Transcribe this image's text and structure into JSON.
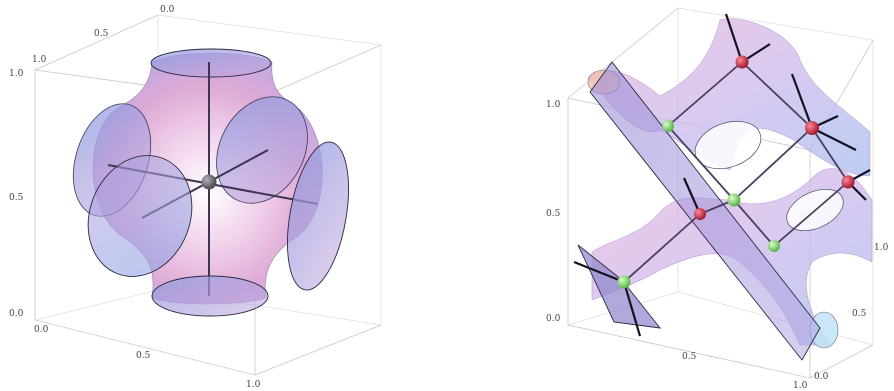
{
  "colors": {
    "surface_pink": "#e9a9d6",
    "surface_blue": "#9fb0ea",
    "disc_blue": "#7f8fd6",
    "red_node": "#c0283e",
    "green_node": "#7fd46a",
    "gray_node": "#6e6e72",
    "frame": "#c8c8c8"
  },
  "left_plot": {
    "ticks_top": [
      "0.0",
      "0.5",
      "1.0"
    ],
    "ticks_left": [
      "1.0",
      "0.5",
      "0.0"
    ],
    "ticks_bottom": [
      "0.0",
      "0.5",
      "1.0"
    ]
  },
  "right_plot": {
    "ticks_left": [
      "1.0",
      "0.5",
      "0.0"
    ],
    "ticks_bottom": [
      "0.5",
      "1.0"
    ],
    "ticks_right": [
      "0.0",
      "0.5",
      "1.0"
    ]
  }
}
